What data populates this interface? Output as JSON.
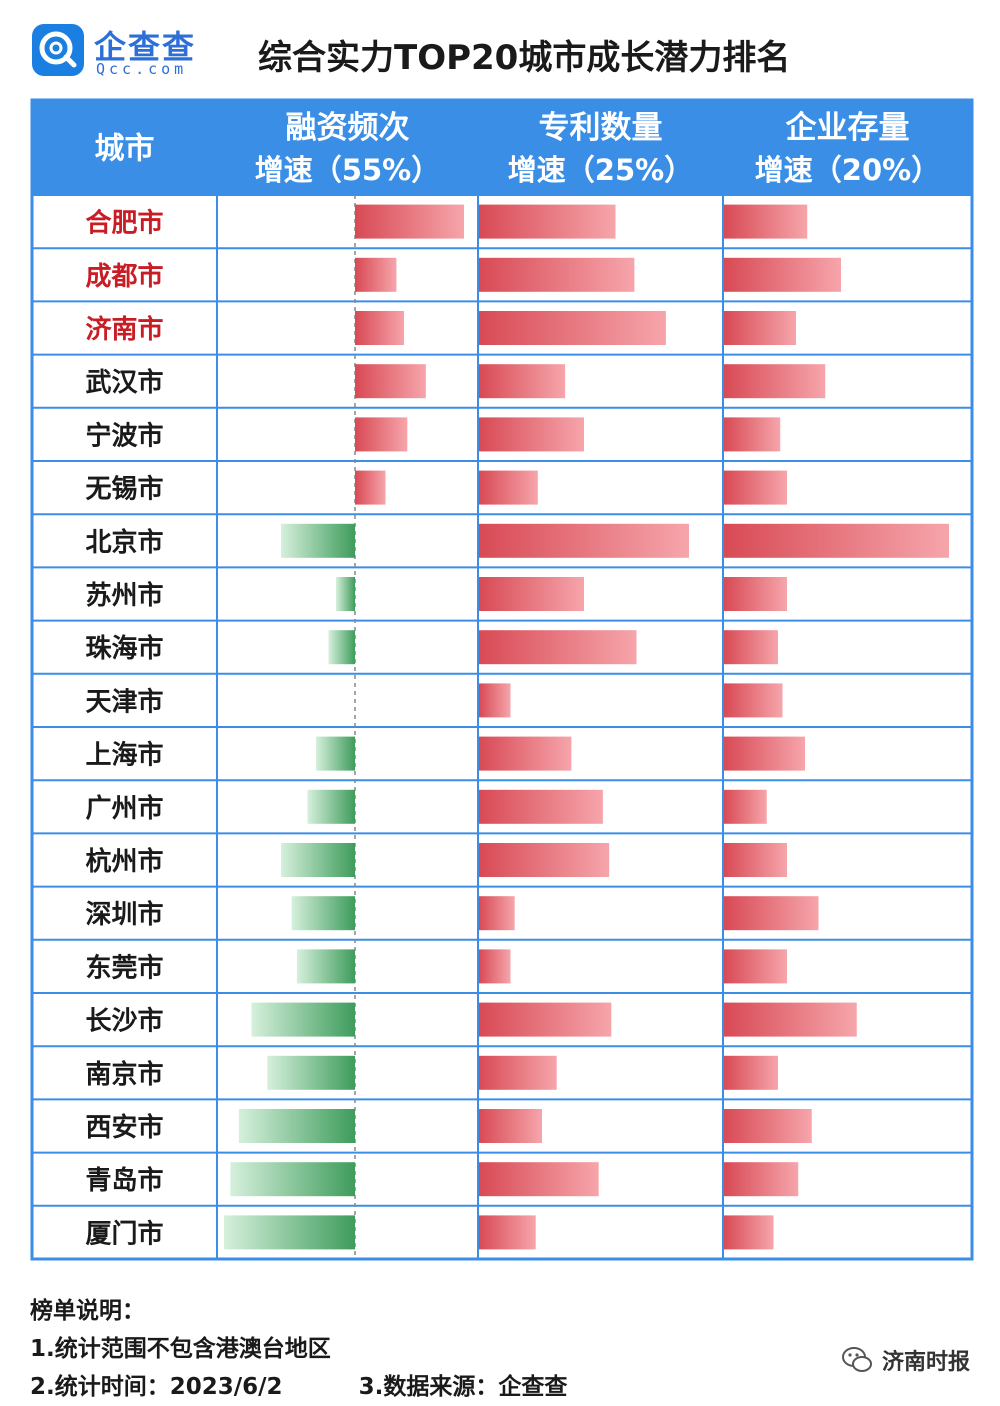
{
  "header": {
    "logo_name": "企查查",
    "logo_domain": "Qcc.com",
    "title": "综合实力TOP20城市成长潜力排名"
  },
  "colors": {
    "header_bg": "#3a8ee6",
    "border": "#3a8ee6",
    "highlight_city": "#c81d25",
    "positive_bar": "#e05760",
    "negative_bar": "#4aa86a"
  },
  "chart_data": {
    "type": "bar",
    "columns": [
      {
        "key": "city",
        "label": "城市"
      },
      {
        "key": "financing",
        "label_line1": "融资频次",
        "label_line2": "增速（55%）"
      },
      {
        "key": "patents",
        "label_line1": "专利数量",
        "label_line2": "增速（25%）"
      },
      {
        "key": "enterprises",
        "label_line1": "企业存量",
        "label_line2": "增速（20%）"
      }
    ],
    "categories": [
      "合肥市",
      "成都市",
      "济南市",
      "武汉市",
      "宁波市",
      "无锡市",
      "北京市",
      "苏州市",
      "珠海市",
      "天津市",
      "上海市",
      "广州市",
      "杭州市",
      "深圳市",
      "东莞市",
      "长沙市",
      "南京市",
      "西安市",
      "青岛市",
      "厦门市"
    ],
    "highlighted": [
      "合肥市",
      "成都市",
      "济南市"
    ],
    "series": [
      {
        "key": "financing",
        "values": [
          100,
          38,
          45,
          65,
          48,
          28,
          -70,
          -18,
          -25,
          0,
          -37,
          -45,
          -70,
          -60,
          -55,
          -98,
          -83,
          -110,
          -118,
          -124
        ]
      },
      {
        "key": "patents",
        "values": [
          65,
          74,
          89,
          41,
          50,
          28,
          100,
          50,
          75,
          15,
          44,
          59,
          62,
          17,
          15,
          63,
          37,
          30,
          57,
          27
        ]
      },
      {
        "key": "enterprises",
        "values": [
          37,
          52,
          32,
          45,
          25,
          28,
          100,
          28,
          24,
          26,
          36,
          19,
          28,
          42,
          28,
          59,
          24,
          39,
          33,
          22
        ]
      }
    ]
  },
  "footer": {
    "notes_title": "榜单说明：",
    "note1": "1.统计范围不包含港澳台地区",
    "note2": "2.统计时间：2023/6/2",
    "note3": "3.数据来源：企查查",
    "watermark_source": "济南时报"
  }
}
